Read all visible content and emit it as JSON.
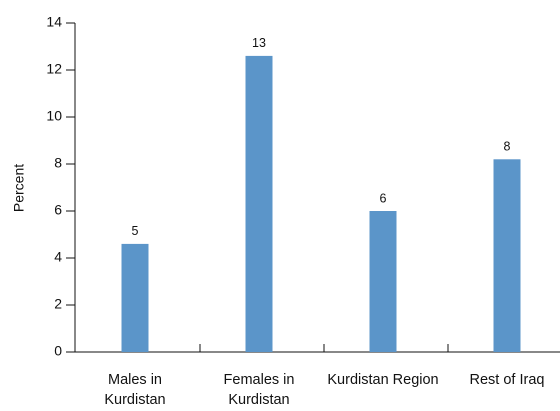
{
  "chart_data": {
    "type": "bar",
    "y_label": "Percent",
    "categories": [
      "Males in Kurdistan",
      "Females in Kurdistan",
      "Kurdistan Region",
      "Rest of Iraq"
    ],
    "values": [
      4.6,
      12.6,
      6.0,
      8.2
    ],
    "value_labels": [
      "5",
      "13",
      "6",
      "8"
    ],
    "color": "#5b95c9",
    "ylim": [
      0,
      14
    ],
    "yticks": [
      0,
      2,
      4,
      6,
      8,
      10,
      12,
      14
    ]
  }
}
